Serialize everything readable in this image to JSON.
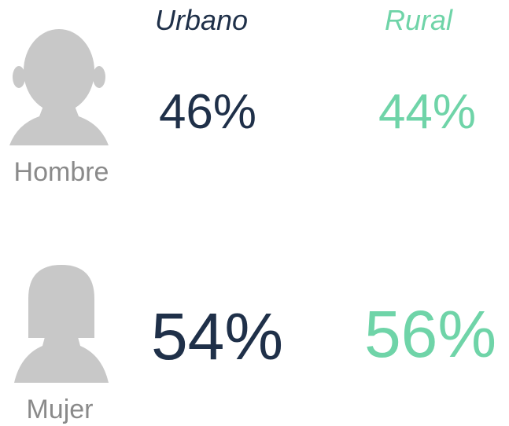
{
  "columns": [
    "Urbano",
    "Rural"
  ],
  "rows": [
    {
      "label": "Hombre",
      "values": [
        "46%",
        "44%"
      ]
    },
    {
      "label": "Mujer",
      "values": [
        "54%",
        "56%"
      ]
    }
  ]
}
